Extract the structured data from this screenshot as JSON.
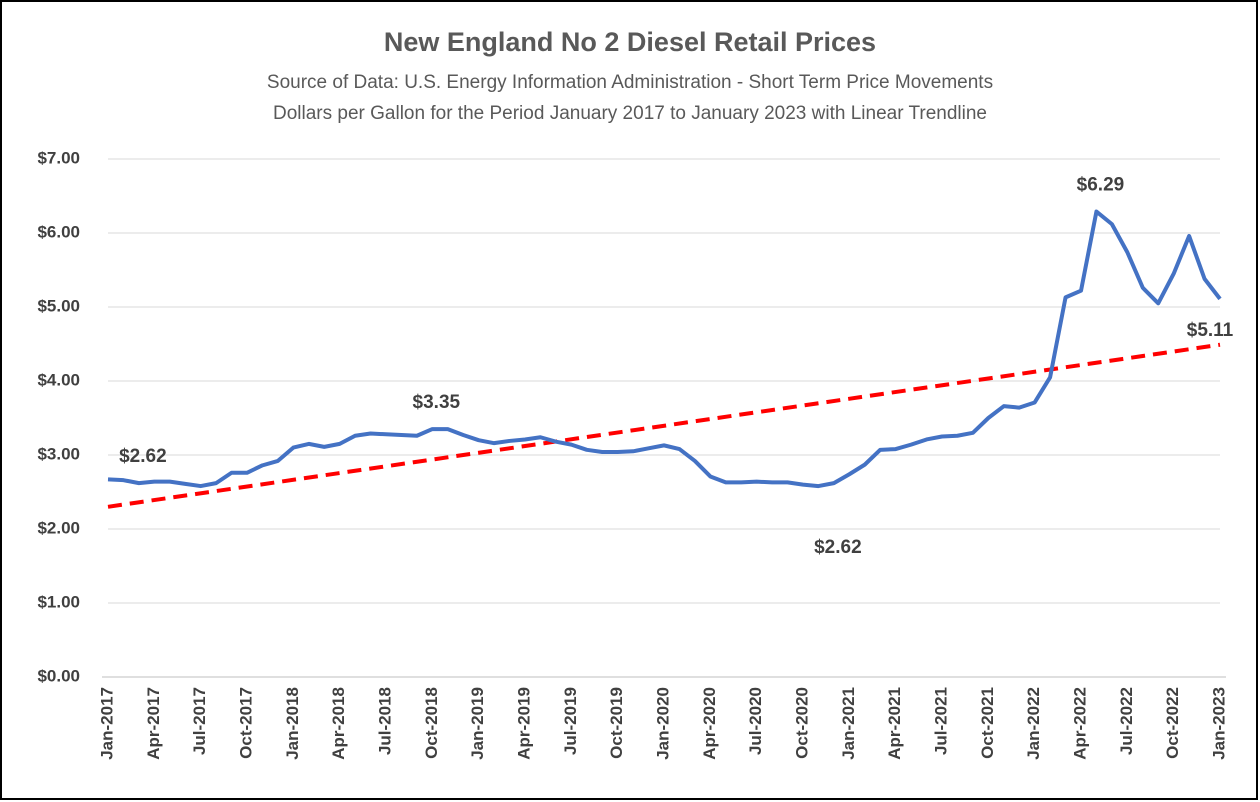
{
  "chart_data": {
    "type": "line",
    "title": "New England No 2 Diesel Retail Prices",
    "subtitle": [
      "Source of Data:  U.S. Energy Information Administration - Short Term Price Movements",
      "Dollars per Gallon for the Period January 2017 to January 2023 with Linear Trendline"
    ],
    "categories": [
      "Jan-2017",
      null,
      null,
      "Apr-2017",
      null,
      null,
      "Jul-2017",
      null,
      null,
      "Oct-2017",
      null,
      null,
      "Jan-2018",
      null,
      null,
      "Apr-2018",
      null,
      null,
      "Jul-2018",
      null,
      null,
      "Oct-2018",
      null,
      null,
      "Jan-2019",
      null,
      null,
      "Apr-2019",
      null,
      null,
      "Jul-2019",
      null,
      null,
      "Oct-2019",
      null,
      null,
      "Jan-2020",
      null,
      null,
      "Apr-2020",
      null,
      null,
      "Jul-2020",
      null,
      null,
      "Oct-2020",
      null,
      null,
      "Jan-2021",
      null,
      null,
      "Apr-2021",
      null,
      null,
      "Jul-2021",
      null,
      null,
      "Oct-2021",
      null,
      null,
      "Jan-2022",
      null,
      null,
      "Apr-2022",
      null,
      null,
      "Jul-2022",
      null,
      null,
      "Oct-2022",
      null,
      null,
      "Jan-2023"
    ],
    "series": [
      {
        "color": "#4472c4",
        "values": [
          2.67,
          2.66,
          2.62,
          2.64,
          2.64,
          2.61,
          2.58,
          2.62,
          2.76,
          2.76,
          2.86,
          2.92,
          3.1,
          3.15,
          3.11,
          3.15,
          3.26,
          3.29,
          3.28,
          3.27,
          3.26,
          3.35,
          3.35,
          3.27,
          3.2,
          3.16,
          3.19,
          3.21,
          3.24,
          3.18,
          3.14,
          3.07,
          3.04,
          3.04,
          3.05,
          3.09,
          3.13,
          3.08,
          2.92,
          2.71,
          2.63,
          2.63,
          2.64,
          2.63,
          2.63,
          2.6,
          2.58,
          2.62,
          2.74,
          2.87,
          3.07,
          3.08,
          3.14,
          3.21,
          3.25,
          3.26,
          3.3,
          3.5,
          3.66,
          3.64,
          3.71,
          4.05,
          5.13,
          5.22,
          6.29,
          6.12,
          5.74,
          5.26,
          5.05,
          5.45,
          5.96,
          5.38,
          5.11
        ],
        "value_labels": [
          null,
          null,
          "$2.62",
          null,
          null,
          null,
          null,
          null,
          null,
          null,
          null,
          null,
          null,
          null,
          null,
          null,
          null,
          null,
          null,
          null,
          null,
          "$3.35",
          null,
          null,
          null,
          null,
          null,
          null,
          null,
          null,
          null,
          null,
          null,
          null,
          null,
          null,
          null,
          null,
          null,
          null,
          null,
          null,
          null,
          null,
          null,
          null,
          null,
          "$2.62",
          null,
          null,
          null,
          null,
          null,
          null,
          null,
          null,
          null,
          null,
          null,
          null,
          null,
          null,
          null,
          null,
          "$6.29",
          null,
          null,
          null,
          null,
          null,
          null,
          null,
          "$5.11"
        ]
      }
    ],
    "trendline": {
      "x": [
        0,
        72
      ],
      "values": [
        2.3,
        4.49
      ],
      "color": "#ff0000"
    },
    "ylim": [
      0,
      7
    ],
    "yticks": [
      {
        "value": 0,
        "label": "$0.00"
      },
      {
        "value": 1,
        "label": "$1.00"
      },
      {
        "value": 2,
        "label": "$2.00"
      },
      {
        "value": 3,
        "label": "$3.00"
      },
      {
        "value": 4,
        "label": "$4.00"
      },
      {
        "value": 5,
        "label": "$5.00"
      },
      {
        "value": 6,
        "label": "$6.00"
      },
      {
        "value": 7,
        "label": "$7.00"
      }
    ],
    "grid": true
  }
}
